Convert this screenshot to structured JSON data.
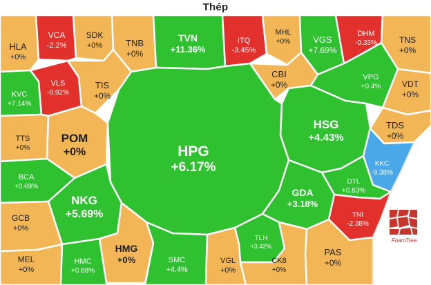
{
  "chart_data": {
    "type": "treemap",
    "title": "Thép",
    "colors": {
      "up": "#2fc12f",
      "flat": "#f2b656",
      "down": "#e2302d",
      "floor": "#4aa8e8",
      "text": "#1f1f1f",
      "text_light": "#ffffff"
    },
    "cells": [
      {
        "ticker": "HLA",
        "change": "+0%",
        "value": 0,
        "status": "flat"
      },
      {
        "ticker": "VCA",
        "change": "-2.2%",
        "value": -2.2,
        "status": "down"
      },
      {
        "ticker": "SDK",
        "change": "+0%",
        "value": 0,
        "status": "flat"
      },
      {
        "ticker": "TNB",
        "change": "+0%",
        "value": 0,
        "status": "flat"
      },
      {
        "ticker": "TVN",
        "change": "+11.36%",
        "value": 11.36,
        "status": "up"
      },
      {
        "ticker": "ITQ",
        "change": "-3.45%",
        "value": -3.45,
        "status": "down"
      },
      {
        "ticker": "MHL",
        "change": "+0%",
        "value": 0,
        "status": "flat"
      },
      {
        "ticker": "VGS",
        "change": "+7.69%",
        "value": 7.69,
        "status": "up"
      },
      {
        "ticker": "DHM",
        "change": "-0.33%",
        "value": -0.33,
        "status": "down"
      },
      {
        "ticker": "TNS",
        "change": "+0%",
        "value": 0,
        "status": "flat"
      },
      {
        "ticker": "KVC",
        "change": "+7.14%",
        "value": 7.14,
        "status": "up"
      },
      {
        "ticker": "VLS",
        "change": "-0.92%",
        "value": -0.92,
        "status": "down"
      },
      {
        "ticker": "TIS",
        "change": "+0%",
        "value": 0,
        "status": "flat"
      },
      {
        "ticker": "CBI",
        "change": "+0%",
        "value": 0,
        "status": "flat"
      },
      {
        "ticker": "VPG",
        "change": "+0.4%",
        "value": 0.4,
        "status": "up"
      },
      {
        "ticker": "VDT",
        "change": "+0%",
        "value": 0,
        "status": "flat"
      },
      {
        "ticker": "HSG",
        "change": "+4.43%",
        "value": 4.43,
        "status": "up"
      },
      {
        "ticker": "TTS",
        "change": "+0%",
        "value": 0,
        "status": "flat"
      },
      {
        "ticker": "POM",
        "change": "+0%",
        "value": 0,
        "status": "flat"
      },
      {
        "ticker": "HPG",
        "change": "+6.17%",
        "value": 6.17,
        "status": "up"
      },
      {
        "ticker": "TDS",
        "change": "+0%",
        "value": 0,
        "status": "flat"
      },
      {
        "ticker": "KKC",
        "change": "-9.38%",
        "value": -9.38,
        "status": "floor"
      },
      {
        "ticker": "BCA",
        "change": "+0.69%",
        "value": 0.69,
        "status": "up"
      },
      {
        "ticker": "DTL",
        "change": "+0.83%",
        "value": 0.83,
        "status": "up"
      },
      {
        "ticker": "NKG",
        "change": "+5.69%",
        "value": 5.69,
        "status": "up"
      },
      {
        "ticker": "GDA",
        "change": "+3.18%",
        "value": 3.18,
        "status": "up"
      },
      {
        "ticker": "GCB",
        "change": "+0%",
        "value": 0,
        "status": "flat"
      },
      {
        "ticker": "TNI",
        "change": "-2.38%",
        "value": -2.38,
        "status": "down"
      },
      {
        "ticker": "TLH",
        "change": "+3.42%",
        "value": 3.42,
        "status": "up"
      },
      {
        "ticker": "HMG",
        "change": "+0%",
        "value": 0,
        "status": "flat"
      },
      {
        "ticker": "PAS",
        "change": "+0%",
        "value": 0,
        "status": "flat"
      },
      {
        "ticker": "MEL",
        "change": "+0%",
        "value": 0,
        "status": "flat"
      },
      {
        "ticker": "HMC",
        "change": "+0.88%",
        "value": 0.88,
        "status": "up"
      },
      {
        "ticker": "SMC",
        "change": "+4.4%",
        "value": 4.4,
        "status": "up"
      },
      {
        "ticker": "VGL",
        "change": "+0%",
        "value": 0,
        "status": "flat"
      },
      {
        "ticker": "CK8",
        "change": "+0%",
        "value": 0,
        "status": "flat"
      }
    ]
  },
  "logo": {
    "text": "FoamTree",
    "color": "#c7362c"
  }
}
